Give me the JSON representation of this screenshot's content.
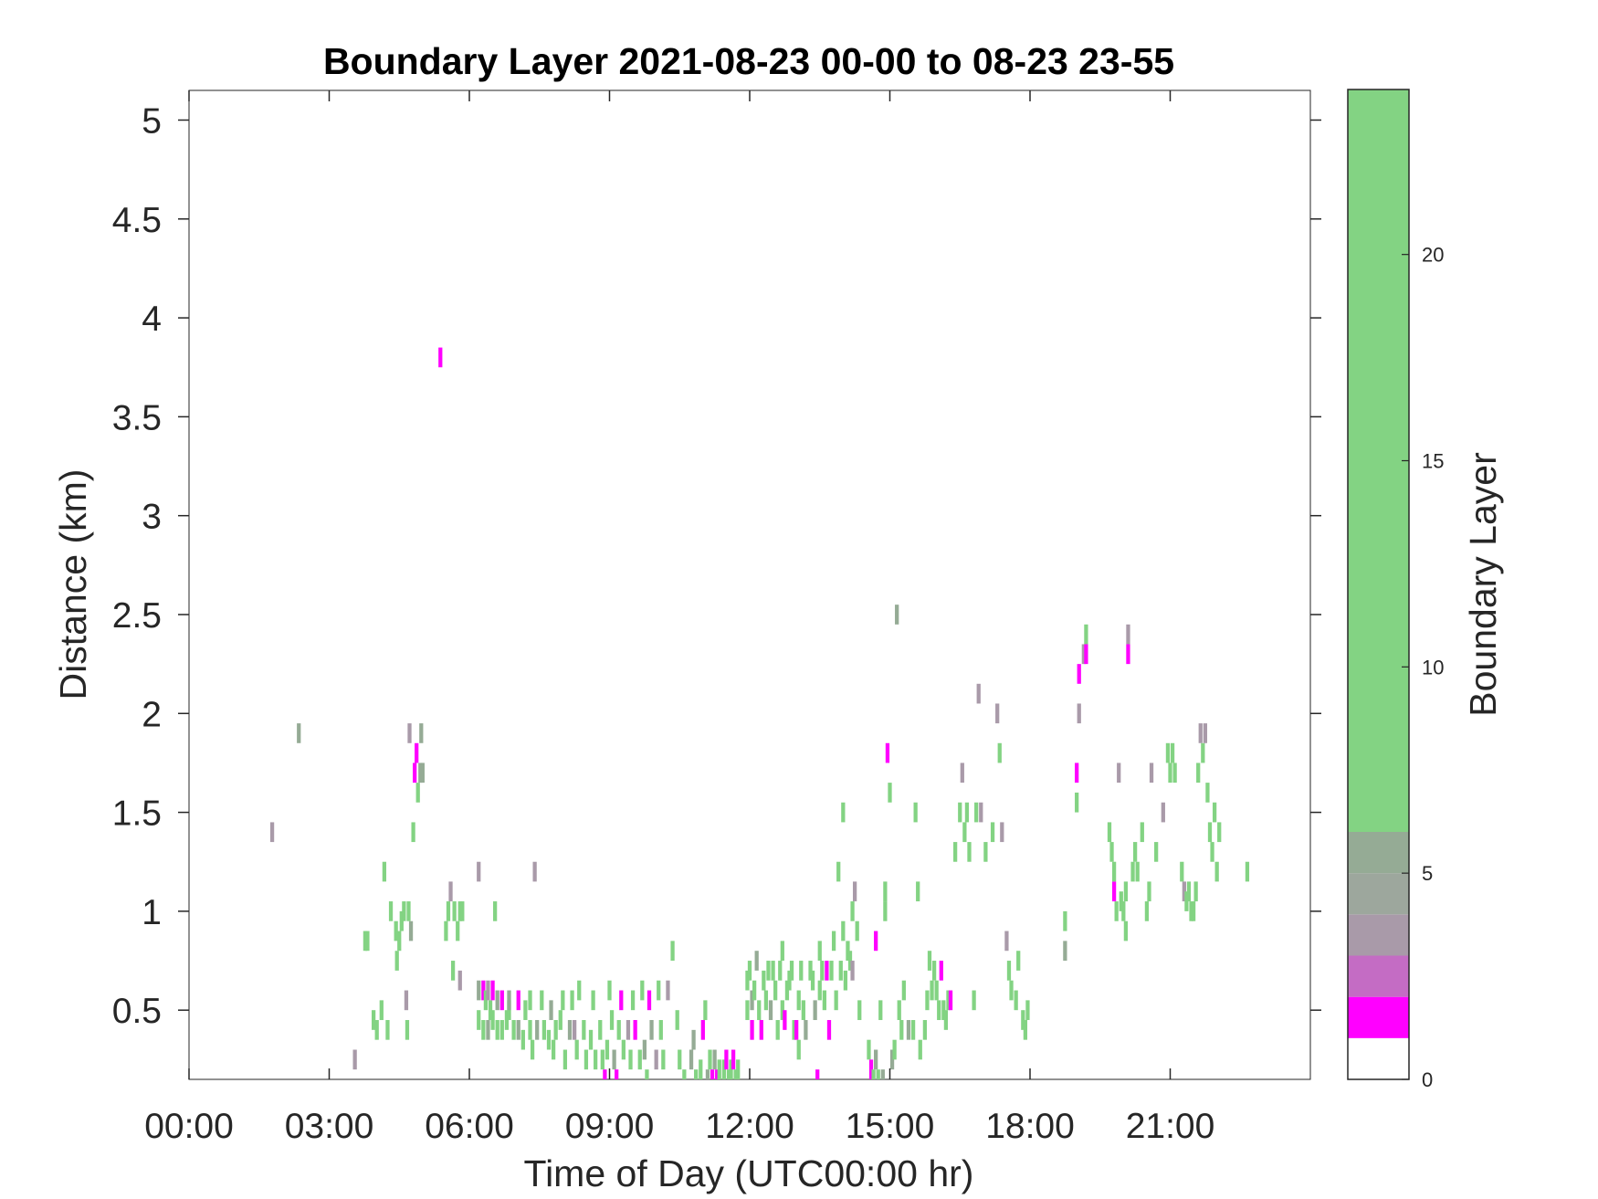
{
  "chart_data": {
    "type": "heatmap",
    "title": "Boundary Layer 2021-08-23 00-00 to 08-23 23-55",
    "xlabel": "Time of Day (UTC00:00 hr)",
    "ylabel": "Distance (km)",
    "colorbar_label": "Boundary Layer",
    "xlim_hours": [
      0,
      24
    ],
    "ylim_km": [
      0.15,
      5.15
    ],
    "x_ticks": [
      {
        "value": 0,
        "label": "00:00"
      },
      {
        "value": 3,
        "label": "03:00"
      },
      {
        "value": 6,
        "label": "06:00"
      },
      {
        "value": 9,
        "label": "09:00"
      },
      {
        "value": 12,
        "label": "12:00"
      },
      {
        "value": 15,
        "label": "15:00"
      },
      {
        "value": 18,
        "label": "18:00"
      },
      {
        "value": 21,
        "label": "21:00"
      }
    ],
    "y_ticks": [
      {
        "value": 0.5,
        "label": "0.5"
      },
      {
        "value": 1,
        "label": "1"
      },
      {
        "value": 1.5,
        "label": "1.5"
      },
      {
        "value": 2,
        "label": "2"
      },
      {
        "value": 2.5,
        "label": "2.5"
      },
      {
        "value": 3,
        "label": "3"
      },
      {
        "value": 3.5,
        "label": "3.5"
      },
      {
        "value": 4,
        "label": "4"
      },
      {
        "value": 4.5,
        "label": "4.5"
      },
      {
        "value": 5,
        "label": "5"
      }
    ],
    "colorbar": {
      "clim": [
        0,
        24
      ],
      "ticks": [
        {
          "value": 0,
          "label": "0"
        },
        {
          "value": 5,
          "label": "5"
        },
        {
          "value": 10,
          "label": "10"
        },
        {
          "value": 15,
          "label": "15"
        },
        {
          "value": 20,
          "label": "20"
        }
      ],
      "bands": [
        {
          "from": 0,
          "to": 1,
          "color": "#ffffff"
        },
        {
          "from": 1,
          "to": 2,
          "color": "#ff00ff"
        },
        {
          "from": 2,
          "to": 3,
          "color": "#c46cc4"
        },
        {
          "from": 3,
          "to": 4,
          "color": "#a99aa9"
        },
        {
          "from": 4,
          "to": 5,
          "color": "#9da79d"
        },
        {
          "from": 5,
          "to": 6,
          "color": "#95ab95"
        },
        {
          "from": 6,
          "to": 24,
          "color": "#83d383"
        }
      ]
    },
    "cell_width_hours": 0.0833,
    "cell_height_km": 0.1,
    "categories": {
      "m": {
        "value": 1,
        "color": "#ff00ff"
      },
      "p": {
        "value": 3,
        "color": "#a99aa9"
      },
      "g": {
        "value": 5,
        "color": "#95ab95"
      },
      "G": {
        "value": 20,
        "color": "#83d383"
      }
    },
    "cells": [
      [
        1.78,
        1.4,
        "p"
      ],
      [
        2.35,
        1.9,
        "g"
      ],
      [
        3.55,
        0.25,
        "p"
      ],
      [
        3.77,
        0.85,
        "G"
      ],
      [
        3.82,
        0.85,
        "G"
      ],
      [
        3.95,
        0.45,
        "G"
      ],
      [
        4.02,
        0.4,
        "G"
      ],
      [
        4.12,
        0.5,
        "G"
      ],
      [
        4.18,
        1.2,
        "G"
      ],
      [
        4.25,
        0.4,
        "G"
      ],
      [
        4.32,
        1.0,
        "G"
      ],
      [
        4.43,
        0.9,
        "G"
      ],
      [
        4.45,
        0.75,
        "G"
      ],
      [
        4.5,
        0.85,
        "G"
      ],
      [
        4.55,
        0.95,
        "G"
      ],
      [
        4.6,
        1.0,
        "G"
      ],
      [
        4.65,
        0.55,
        "p"
      ],
      [
        4.67,
        0.4,
        "G"
      ],
      [
        4.7,
        1.0,
        "G"
      ],
      [
        4.72,
        1.9,
        "p"
      ],
      [
        4.75,
        0.9,
        "g"
      ],
      [
        4.8,
        1.4,
        "G"
      ],
      [
        4.83,
        1.7,
        "m"
      ],
      [
        4.87,
        1.8,
        "m"
      ],
      [
        4.9,
        1.6,
        "G"
      ],
      [
        4.95,
        1.7,
        "g"
      ],
      [
        4.97,
        1.9,
        "g"
      ],
      [
        5.0,
        1.7,
        "g"
      ],
      [
        5.38,
        3.8,
        "m"
      ],
      [
        5.5,
        0.9,
        "G"
      ],
      [
        5.55,
        1.0,
        "G"
      ],
      [
        5.6,
        1.1,
        "p"
      ],
      [
        5.65,
        0.7,
        "G"
      ],
      [
        5.68,
        1.0,
        "G"
      ],
      [
        5.75,
        0.9,
        "G"
      ],
      [
        5.8,
        1.0,
        "G"
      ],
      [
        5.8,
        0.65,
        "p"
      ],
      [
        5.85,
        1.0,
        "G"
      ],
      [
        6.2,
        1.2,
        "p"
      ],
      [
        6.2,
        0.6,
        "g"
      ],
      [
        6.2,
        0.45,
        "G"
      ],
      [
        6.3,
        0.6,
        "m"
      ],
      [
        6.3,
        0.4,
        "G"
      ],
      [
        6.35,
        0.55,
        "G"
      ],
      [
        6.4,
        0.6,
        "p"
      ],
      [
        6.4,
        0.4,
        "g"
      ],
      [
        6.45,
        0.5,
        "G"
      ],
      [
        6.5,
        0.6,
        "m"
      ],
      [
        6.5,
        0.45,
        "G"
      ],
      [
        6.55,
        1.0,
        "G"
      ],
      [
        6.6,
        0.55,
        "g"
      ],
      [
        6.6,
        0.4,
        "G"
      ],
      [
        6.7,
        0.4,
        "G"
      ],
      [
        6.7,
        0.55,
        "m"
      ],
      [
        6.8,
        0.45,
        "G"
      ],
      [
        6.85,
        0.5,
        "G"
      ],
      [
        6.85,
        0.55,
        "g"
      ],
      [
        6.95,
        0.4,
        "G"
      ],
      [
        7.05,
        0.55,
        "m"
      ],
      [
        7.05,
        0.4,
        "g"
      ],
      [
        7.15,
        0.35,
        "G"
      ],
      [
        7.2,
        0.5,
        "G"
      ],
      [
        7.3,
        0.55,
        "G"
      ],
      [
        7.3,
        0.4,
        "G"
      ],
      [
        7.35,
        0.3,
        "G"
      ],
      [
        7.4,
        1.2,
        "p"
      ],
      [
        7.45,
        0.4,
        "g"
      ],
      [
        7.55,
        0.55,
        "G"
      ],
      [
        7.6,
        0.4,
        "G"
      ],
      [
        7.7,
        0.35,
        "G"
      ],
      [
        7.75,
        0.5,
        "g"
      ],
      [
        7.8,
        0.3,
        "G"
      ],
      [
        7.85,
        0.4,
        "G"
      ],
      [
        7.95,
        0.45,
        "G"
      ],
      [
        8.0,
        0.55,
        "G"
      ],
      [
        8.05,
        0.25,
        "G"
      ],
      [
        8.15,
        0.4,
        "g"
      ],
      [
        8.2,
        0.55,
        "G"
      ],
      [
        8.25,
        0.4,
        "p"
      ],
      [
        8.3,
        0.3,
        "G"
      ],
      [
        8.35,
        0.6,
        "G"
      ],
      [
        8.45,
        0.4,
        "G"
      ],
      [
        8.5,
        0.25,
        "G"
      ],
      [
        8.6,
        0.35,
        "G"
      ],
      [
        8.65,
        0.55,
        "G"
      ],
      [
        8.7,
        0.25,
        "G"
      ],
      [
        8.8,
        0.4,
        "G"
      ],
      [
        8.85,
        0.25,
        "G"
      ],
      [
        8.9,
        0.15,
        "m"
      ],
      [
        8.95,
        0.3,
        "G"
      ],
      [
        9.0,
        0.6,
        "G"
      ],
      [
        9.05,
        0.45,
        "G"
      ],
      [
        9.1,
        0.25,
        "g"
      ],
      [
        9.15,
        0.15,
        "m"
      ],
      [
        9.2,
        0.4,
        "G"
      ],
      [
        9.25,
        0.55,
        "m"
      ],
      [
        9.3,
        0.3,
        "G"
      ],
      [
        9.4,
        0.4,
        "p"
      ],
      [
        9.45,
        0.25,
        "G"
      ],
      [
        9.5,
        0.55,
        "G"
      ],
      [
        9.55,
        0.4,
        "m"
      ],
      [
        9.65,
        0.25,
        "G"
      ],
      [
        9.7,
        0.6,
        "G"
      ],
      [
        9.75,
        0.3,
        "g"
      ],
      [
        9.8,
        0.15,
        "G"
      ],
      [
        9.85,
        0.55,
        "m"
      ],
      [
        9.9,
        0.4,
        "g"
      ],
      [
        10.0,
        0.25,
        "p"
      ],
      [
        10.05,
        0.6,
        "G"
      ],
      [
        10.1,
        0.4,
        "G"
      ],
      [
        10.15,
        0.25,
        "G"
      ],
      [
        10.25,
        0.6,
        "p"
      ],
      [
        10.35,
        0.8,
        "G"
      ],
      [
        10.45,
        0.45,
        "G"
      ],
      [
        10.5,
        0.25,
        "G"
      ],
      [
        10.6,
        0.15,
        "G"
      ],
      [
        10.75,
        0.25,
        "g"
      ],
      [
        10.8,
        0.35,
        "g"
      ],
      [
        10.85,
        0.15,
        "G"
      ],
      [
        10.95,
        0.2,
        "G"
      ],
      [
        11.0,
        0.4,
        "m"
      ],
      [
        11.05,
        0.5,
        "G"
      ],
      [
        11.1,
        0.15,
        "g"
      ],
      [
        11.15,
        0.25,
        "G"
      ],
      [
        11.2,
        0.15,
        "m"
      ],
      [
        11.25,
        0.25,
        "g"
      ],
      [
        11.3,
        0.15,
        "m"
      ],
      [
        11.35,
        0.2,
        "G"
      ],
      [
        11.45,
        0.2,
        "G"
      ],
      [
        11.5,
        0.25,
        "m"
      ],
      [
        11.55,
        0.15,
        "G"
      ],
      [
        11.6,
        0.2,
        "G"
      ],
      [
        11.65,
        0.25,
        "m"
      ],
      [
        11.7,
        0.15,
        "G"
      ],
      [
        11.75,
        0.2,
        "G"
      ],
      [
        11.95,
        0.65,
        "G"
      ],
      [
        11.95,
        0.5,
        "G"
      ],
      [
        12.0,
        0.7,
        "G"
      ],
      [
        12.05,
        0.55,
        "g"
      ],
      [
        12.05,
        0.4,
        "m"
      ],
      [
        12.1,
        0.6,
        "G"
      ],
      [
        12.15,
        0.75,
        "g"
      ],
      [
        12.2,
        0.5,
        "G"
      ],
      [
        12.25,
        0.4,
        "m"
      ],
      [
        12.3,
        0.65,
        "G"
      ],
      [
        12.35,
        0.55,
        "G"
      ],
      [
        12.4,
        0.7,
        "G"
      ],
      [
        12.45,
        0.5,
        "g"
      ],
      [
        12.5,
        0.7,
        "G"
      ],
      [
        12.55,
        0.6,
        "G"
      ],
      [
        12.6,
        0.4,
        "G"
      ],
      [
        12.65,
        0.7,
        "G"
      ],
      [
        12.7,
        0.8,
        "G"
      ],
      [
        12.7,
        0.5,
        "G"
      ],
      [
        12.75,
        0.45,
        "m"
      ],
      [
        12.8,
        0.6,
        "G"
      ],
      [
        12.85,
        0.65,
        "G"
      ],
      [
        12.9,
        0.7,
        "G"
      ],
      [
        12.95,
        0.4,
        "G"
      ],
      [
        13.0,
        0.4,
        "m"
      ],
      [
        13.05,
        0.55,
        "G"
      ],
      [
        13.05,
        0.3,
        "G"
      ],
      [
        13.1,
        0.7,
        "G"
      ],
      [
        13.15,
        0.5,
        "G"
      ],
      [
        13.2,
        0.4,
        "g"
      ],
      [
        13.3,
        0.7,
        "G"
      ],
      [
        13.35,
        0.65,
        "G"
      ],
      [
        13.4,
        0.5,
        "g"
      ],
      [
        13.45,
        0.15,
        "m"
      ],
      [
        13.5,
        0.8,
        "G"
      ],
      [
        13.5,
        0.6,
        "G"
      ],
      [
        13.55,
        0.7,
        "G"
      ],
      [
        13.6,
        0.55,
        "G"
      ],
      [
        13.65,
        0.7,
        "m"
      ],
      [
        13.7,
        0.4,
        "m"
      ],
      [
        13.75,
        0.7,
        "G"
      ],
      [
        13.8,
        0.85,
        "G"
      ],
      [
        13.85,
        0.55,
        "G"
      ],
      [
        13.9,
        1.2,
        "G"
      ],
      [
        13.95,
        0.7,
        "G"
      ],
      [
        14.0,
        1.5,
        "G"
      ],
      [
        14.0,
        0.9,
        "G"
      ],
      [
        14.05,
        0.65,
        "G"
      ],
      [
        14.1,
        0.8,
        "G"
      ],
      [
        14.15,
        0.75,
        "G"
      ],
      [
        14.2,
        1.0,
        "G"
      ],
      [
        14.2,
        0.7,
        "p"
      ],
      [
        14.25,
        1.1,
        "p"
      ],
      [
        14.3,
        0.9,
        "G"
      ],
      [
        14.35,
        0.5,
        "G"
      ],
      [
        14.55,
        0.3,
        "G"
      ],
      [
        14.6,
        0.2,
        "m"
      ],
      [
        14.65,
        0.15,
        "G"
      ],
      [
        14.7,
        0.85,
        "m"
      ],
      [
        14.7,
        0.25,
        "g"
      ],
      [
        14.75,
        0.15,
        "G"
      ],
      [
        14.8,
        0.5,
        "G"
      ],
      [
        14.85,
        0.15,
        "g"
      ],
      [
        14.9,
        1.0,
        "G"
      ],
      [
        14.9,
        1.1,
        "G"
      ],
      [
        14.95,
        1.8,
        "m"
      ],
      [
        15.0,
        1.6,
        "G"
      ],
      [
        15.05,
        0.25,
        "g"
      ],
      [
        15.1,
        0.3,
        "G"
      ],
      [
        15.15,
        2.5,
        "g"
      ],
      [
        15.2,
        0.5,
        "G"
      ],
      [
        15.25,
        0.4,
        "G"
      ],
      [
        15.3,
        0.6,
        "G"
      ],
      [
        15.4,
        0.4,
        "g"
      ],
      [
        15.5,
        0.4,
        "G"
      ],
      [
        15.55,
        1.5,
        "G"
      ],
      [
        15.6,
        1.1,
        "G"
      ],
      [
        15.65,
        0.3,
        "G"
      ],
      [
        15.75,
        0.4,
        "G"
      ],
      [
        15.8,
        0.55,
        "G"
      ],
      [
        15.85,
        0.75,
        "G"
      ],
      [
        15.9,
        0.6,
        "G"
      ],
      [
        15.95,
        0.7,
        "G"
      ],
      [
        16.0,
        0.6,
        "G"
      ],
      [
        16.05,
        0.5,
        "G"
      ],
      [
        16.1,
        0.7,
        "m"
      ],
      [
        16.15,
        0.5,
        "G"
      ],
      [
        16.2,
        0.45,
        "G"
      ],
      [
        16.25,
        0.55,
        "G"
      ],
      [
        16.3,
        0.55,
        "m"
      ],
      [
        16.4,
        1.3,
        "G"
      ],
      [
        16.5,
        1.5,
        "G"
      ],
      [
        16.55,
        1.7,
        "p"
      ],
      [
        16.6,
        1.4,
        "G"
      ],
      [
        16.65,
        1.5,
        "G"
      ],
      [
        16.7,
        1.3,
        "G"
      ],
      [
        16.8,
        0.55,
        "G"
      ],
      [
        16.85,
        1.5,
        "G"
      ],
      [
        16.9,
        2.1,
        "p"
      ],
      [
        16.95,
        1.5,
        "p"
      ],
      [
        17.05,
        1.3,
        "G"
      ],
      [
        17.2,
        1.4,
        "G"
      ],
      [
        17.3,
        2.0,
        "p"
      ],
      [
        17.35,
        1.8,
        "G"
      ],
      [
        17.4,
        1.4,
        "p"
      ],
      [
        17.5,
        0.85,
        "p"
      ],
      [
        17.55,
        0.7,
        "G"
      ],
      [
        17.6,
        0.6,
        "G"
      ],
      [
        17.7,
        0.55,
        "G"
      ],
      [
        17.75,
        0.75,
        "G"
      ],
      [
        17.85,
        0.45,
        "G"
      ],
      [
        17.9,
        0.4,
        "G"
      ],
      [
        17.95,
        0.5,
        "G"
      ],
      [
        18.75,
        0.95,
        "G"
      ],
      [
        18.75,
        0.8,
        "g"
      ],
      [
        19.0,
        1.7,
        "m"
      ],
      [
        19.0,
        1.55,
        "G"
      ],
      [
        19.05,
        2.2,
        "m"
      ],
      [
        19.05,
        2.0,
        "p"
      ],
      [
        19.15,
        2.3,
        "p"
      ],
      [
        19.2,
        2.3,
        "m"
      ],
      [
        19.2,
        2.4,
        "G"
      ],
      [
        19.7,
        1.4,
        "G"
      ],
      [
        19.75,
        1.3,
        "G"
      ],
      [
        19.8,
        1.1,
        "m"
      ],
      [
        19.8,
        1.2,
        "G"
      ],
      [
        19.85,
        1.0,
        "G"
      ],
      [
        19.9,
        1.7,
        "p"
      ],
      [
        19.95,
        1.05,
        "G"
      ],
      [
        20.0,
        1.0,
        "G"
      ],
      [
        20.05,
        1.1,
        "G"
      ],
      [
        20.05,
        0.9,
        "G"
      ],
      [
        20.1,
        2.3,
        "m"
      ],
      [
        20.1,
        2.4,
        "p"
      ],
      [
        20.2,
        1.2,
        "G"
      ],
      [
        20.25,
        1.3,
        "G"
      ],
      [
        20.3,
        1.2,
        "G"
      ],
      [
        20.4,
        1.4,
        "G"
      ],
      [
        20.5,
        1.0,
        "G"
      ],
      [
        20.55,
        1.1,
        "G"
      ],
      [
        20.6,
        1.7,
        "p"
      ],
      [
        20.7,
        1.3,
        "G"
      ],
      [
        20.85,
        1.5,
        "p"
      ],
      [
        20.95,
        1.8,
        "G"
      ],
      [
        21.0,
        1.7,
        "G"
      ],
      [
        21.05,
        1.8,
        "G"
      ],
      [
        21.1,
        1.7,
        "G"
      ],
      [
        21.25,
        1.2,
        "G"
      ],
      [
        21.3,
        1.1,
        "p"
      ],
      [
        21.35,
        1.05,
        "G"
      ],
      [
        21.4,
        1.1,
        "G"
      ],
      [
        21.45,
        1.0,
        "G"
      ],
      [
        21.5,
        1.0,
        "G"
      ],
      [
        21.55,
        1.1,
        "G"
      ],
      [
        21.6,
        1.7,
        "G"
      ],
      [
        21.65,
        1.9,
        "p"
      ],
      [
        21.7,
        1.8,
        "G"
      ],
      [
        21.75,
        1.9,
        "p"
      ],
      [
        21.8,
        1.6,
        "G"
      ],
      [
        21.85,
        1.4,
        "G"
      ],
      [
        21.9,
        1.3,
        "G"
      ],
      [
        21.95,
        1.5,
        "G"
      ],
      [
        22.0,
        1.2,
        "G"
      ],
      [
        22.05,
        1.4,
        "G"
      ],
      [
        22.65,
        1.2,
        "G"
      ]
    ]
  }
}
